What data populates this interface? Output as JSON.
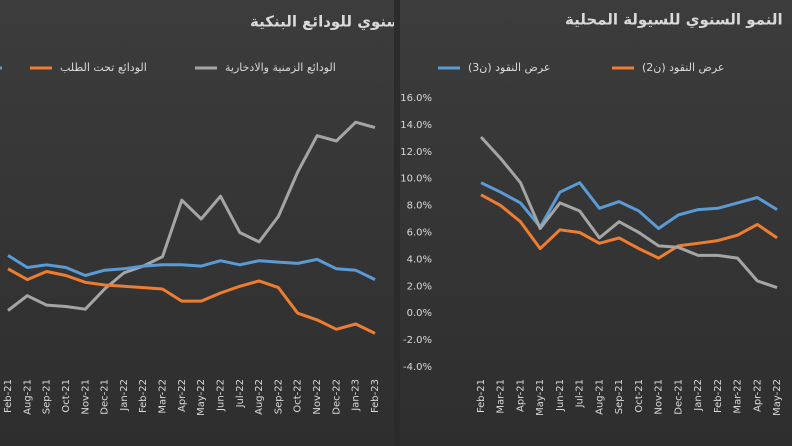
{
  "chart_data": [
    {
      "type": "line",
      "title": "النمو السنوي للودائع البنكية",
      "categories": [
        "Feb-21",
        "Aug-21",
        "Sep-21",
        "Oct-21",
        "Nov-21",
        "Dec-21",
        "Jan-22",
        "Feb-22",
        "Mar-22",
        "Apr-22",
        "May-22",
        "Jun-22",
        "Jul-22",
        "Aug-22",
        "Sep-22",
        "Oct-22",
        "Nov-22",
        "Dec-22",
        "Jan-23",
        "Feb-23"
      ],
      "series": [
        {
          "name": "الودائع الزمنية والادخارية",
          "color": "#a5a5a5",
          "values": [
            0.2,
            1.3,
            0.6,
            0.5,
            0.3,
            1.8,
            3.0,
            3.5,
            4.2,
            8.4,
            7.0,
            8.7,
            6.0,
            5.3,
            7.2,
            10.5,
            13.2,
            12.8,
            14.2,
            13.8
          ]
        },
        {
          "name": "الودائع تحت الطلب",
          "color": "#ed7d31",
          "values": [
            3.3,
            2.5,
            3.1,
            2.8,
            2.3,
            2.1,
            2.0,
            1.9,
            1.8,
            0.9,
            0.9,
            1.5,
            2.0,
            2.4,
            1.9,
            0.0,
            -0.5,
            -1.2,
            -0.8,
            -1.5
          ]
        },
        {
          "color": "#5b9bd5",
          "values": [
            4.3,
            3.4,
            3.6,
            3.4,
            2.8,
            3.2,
            3.3,
            3.5,
            3.6,
            3.6,
            3.5,
            3.9,
            3.6,
            3.9,
            3.8,
            3.7,
            4.0,
            3.3,
            3.2,
            2.5
          ]
        }
      ],
      "ylim": [
        -4,
        16
      ]
    },
    {
      "type": "line",
      "title": "النمو السنوي للسيولة المحلية",
      "categories": [
        "Feb-21",
        "Mar-21",
        "Apr-21",
        "May-21",
        "Jun-21",
        "Jul-21",
        "Aug-21",
        "Sep-21",
        "Oct-21",
        "Nov-21",
        "Dec-21",
        "Jan-22",
        "Feb-22",
        "Mar-22",
        "Apr-22",
        "May-22"
      ],
      "series": [
        {
          "name": "عرض النقود (ن3)",
          "color": "#5b9bd5",
          "values": [
            9.7,
            9.0,
            8.2,
            6.4,
            9.0,
            9.7,
            7.8,
            8.3,
            7.6,
            6.3,
            7.3,
            7.7,
            7.8,
            8.2,
            8.6,
            7.7
          ]
        },
        {
          "name": "عرض النقود (ن2)",
          "color": "#ed7d31",
          "values": [
            8.8,
            8.0,
            6.8,
            4.8,
            6.2,
            6.0,
            5.2,
            5.6,
            4.8,
            4.1,
            5.0,
            5.2,
            5.4,
            5.8,
            6.6,
            5.6
          ]
        },
        {
          "color": "#a5a5a5",
          "values": [
            13.1,
            11.5,
            9.7,
            6.3,
            8.2,
            7.6,
            5.6,
            6.8,
            6.0,
            5.0,
            4.9,
            4.3,
            4.3,
            4.1,
            2.4,
            1.9
          ]
        }
      ],
      "ylim": [
        -4,
        16
      ],
      "yticks": [
        {
          "value": 16,
          "label": "16.0%"
        },
        {
          "value": 14,
          "label": "14.0%"
        },
        {
          "value": 12,
          "label": "12.0%"
        },
        {
          "value": 10,
          "label": "10.0%"
        },
        {
          "value": 8,
          "label": "8.0%"
        },
        {
          "value": 6,
          "label": "6.0%"
        },
        {
          "value": 4,
          "label": "4.0%"
        },
        {
          "value": 2,
          "label": "2.0%"
        },
        {
          "value": 0,
          "label": "0.0%"
        },
        {
          "value": -2,
          "label": "-2.0%"
        },
        {
          "value": -4,
          "label": "-4.0%"
        }
      ]
    }
  ]
}
